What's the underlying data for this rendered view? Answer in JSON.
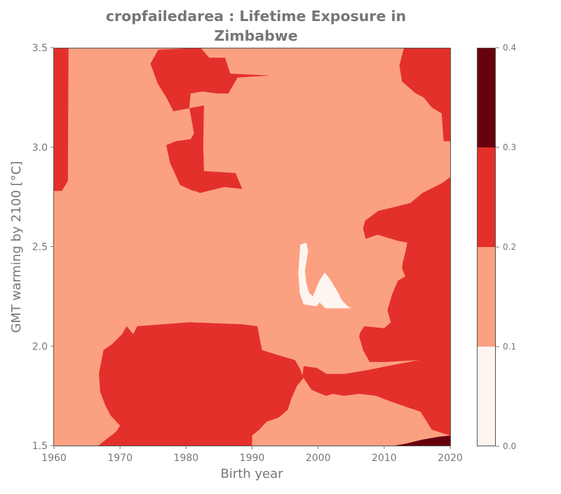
{
  "chart_data": {
    "type": "heatmap",
    "title_lines": [
      "cropfailedarea : Lifetime Exposure in",
      "Zimbabwe"
    ],
    "xlabel": "Birth year",
    "ylabel": "GMT warming by 2100 [°C]",
    "xlim": [
      1960,
      2020
    ],
    "ylim": [
      1.5,
      3.5
    ],
    "xticks": [
      "1960",
      "1970",
      "1980",
      "1990",
      "2000",
      "2010",
      "2020"
    ],
    "yticks": [
      "1.5",
      "2.0",
      "2.5",
      "3.0",
      "3.5"
    ],
    "colorbar": {
      "ticks": [
        "0.0",
        "0.1",
        "0.2",
        "0.3",
        "0.4"
      ],
      "levels": [
        0.0,
        0.1,
        0.2,
        0.3,
        0.4
      ],
      "colors": [
        "#fff5f0",
        "#fca082",
        "#e3302a",
        "#67000d"
      ]
    },
    "background_level_band": [
      0.1,
      0.2
    ],
    "regions": [
      {
        "band": [
          0.2,
          0.3
        ],
        "points": [
          [
            1960,
            3.5
          ],
          [
            1962.2,
            3.5
          ],
          [
            1962.1,
            2.83
          ],
          [
            1961.2,
            2.78
          ],
          [
            1960,
            2.78
          ]
        ]
      },
      {
        "band": [
          0.2,
          0.3
        ],
        "points": [
          [
            1975.8,
            3.49
          ],
          [
            1982.2,
            3.5
          ],
          [
            1983.5,
            3.45
          ],
          [
            1985.9,
            3.45
          ],
          [
            1986.7,
            3.37
          ],
          [
            1992.7,
            3.36
          ],
          [
            1987.8,
            3.35
          ],
          [
            1986.4,
            3.27
          ],
          [
            1984.7,
            3.27
          ],
          [
            1982.5,
            3.28
          ],
          [
            1980.7,
            3.27
          ],
          [
            1980.5,
            3.2
          ],
          [
            1978.1,
            3.18
          ],
          [
            1977.0,
            3.25
          ],
          [
            1975.7,
            3.32
          ],
          [
            1974.6,
            3.42
          ]
        ]
      },
      {
        "band": [
          0.2,
          0.3
        ],
        "points": [
          [
            1978.1,
            3.18
          ],
          [
            1980.5,
            3.2
          ],
          [
            1981.2,
            3.07
          ],
          [
            1980.7,
            3.04
          ],
          [
            1978.5,
            3.03
          ],
          [
            1977.0,
            3.01
          ],
          [
            1977.6,
            2.92
          ],
          [
            1979.1,
            2.81
          ],
          [
            1981.1,
            2.78
          ],
          [
            1985.8,
            2.8
          ],
          [
            1982.7,
            2.88
          ],
          [
            1982.6,
            3.0
          ],
          [
            1982.7,
            3.21
          ]
        ]
      },
      {
        "band": [
          0.2,
          0.3
        ],
        "points": [
          [
            1978.5,
            3.03
          ],
          [
            1981.1,
            3.04
          ],
          [
            1982.6,
            3.0
          ],
          [
            1982.7,
            2.88
          ],
          [
            1987.5,
            2.87
          ],
          [
            1988.5,
            2.79
          ],
          [
            1985.8,
            2.8
          ],
          [
            1982.1,
            2.77
          ],
          [
            1979.1,
            2.81
          ],
          [
            1977.6,
            2.92
          ],
          [
            1977.0,
            3.01
          ]
        ]
      },
      {
        "band": [
          0.2,
          0.3
        ],
        "points": [
          [
            2013.0,
            3.5
          ],
          [
            2020,
            3.5
          ],
          [
            2020,
            3.03
          ],
          [
            2019.0,
            3.03
          ],
          [
            2018.7,
            3.17
          ],
          [
            2017.2,
            3.2
          ],
          [
            2016.0,
            3.25
          ],
          [
            2014.8,
            3.27
          ],
          [
            2012.7,
            3.33
          ],
          [
            2012.3,
            3.41
          ]
        ]
      },
      {
        "band": [
          0.2,
          0.3
        ],
        "points": [
          [
            2020,
            2.85
          ],
          [
            2018.8,
            2.82
          ],
          [
            2015.8,
            2.77
          ],
          [
            2014.0,
            2.72
          ],
          [
            2011.7,
            2.7
          ],
          [
            2009.1,
            2.68
          ],
          [
            2007.1,
            2.63
          ],
          [
            2006.8,
            2.59
          ],
          [
            2007.2,
            2.54
          ],
          [
            2009.0,
            2.56
          ],
          [
            2012.0,
            2.53
          ],
          [
            2013.5,
            2.52
          ],
          [
            2013.2,
            2.47
          ],
          [
            2012.8,
            2.42
          ],
          [
            2012.7,
            2.39
          ],
          [
            2013.2,
            2.35
          ],
          [
            2012.1,
            2.33
          ],
          [
            2011.2,
            2.26
          ],
          [
            2010.5,
            2.18
          ],
          [
            2011.0,
            2.12
          ],
          [
            2010.0,
            2.09
          ],
          [
            2007.0,
            2.1
          ],
          [
            2006.4,
            2.07
          ],
          [
            2006.2,
            2.05
          ],
          [
            2006.8,
            1.98
          ],
          [
            2007.8,
            1.92
          ],
          [
            2010.2,
            1.92
          ],
          [
            2015.3,
            1.93
          ],
          [
            2010.5,
            1.9
          ],
          [
            2007.6,
            1.88
          ],
          [
            2004.0,
            1.86
          ],
          [
            2001.3,
            1.86
          ],
          [
            1999.8,
            1.89
          ],
          [
            1997.8,
            1.9
          ],
          [
            1997.6,
            1.84
          ],
          [
            1999.0,
            1.78
          ],
          [
            2001.2,
            1.75
          ],
          [
            2002.2,
            1.76
          ],
          [
            2003.9,
            1.75
          ],
          [
            2006.2,
            1.76
          ],
          [
            2008.8,
            1.75
          ],
          [
            2011.1,
            1.72
          ],
          [
            2015.5,
            1.67
          ],
          [
            2017.2,
            1.58
          ],
          [
            2020,
            1.55
          ],
          [
            2020,
            1.5
          ],
          [
            2020,
            2.85
          ]
        ]
      },
      {
        "band": [
          0.2,
          0.3
        ],
        "points": [
          [
            1966.7,
            1.5
          ],
          [
            1969.4,
            1.57
          ],
          [
            1970.0,
            1.6
          ],
          [
            1968.6,
            1.65
          ],
          [
            1967.8,
            1.7
          ],
          [
            1967.0,
            1.77
          ],
          [
            1966.8,
            1.86
          ],
          [
            1967.5,
            1.98
          ],
          [
            1968.8,
            2.01
          ],
          [
            1970.3,
            2.06
          ],
          [
            1971.0,
            2.1
          ],
          [
            1971.5,
            2.08
          ],
          [
            1972.0,
            2.06
          ],
          [
            1972.6,
            2.1
          ],
          [
            1980.5,
            2.12
          ],
          [
            1988.5,
            2.11
          ],
          [
            1990.8,
            2.1
          ],
          [
            1991.5,
            1.98
          ],
          [
            1994.4,
            1.95
          ],
          [
            1996.5,
            1.93
          ],
          [
            1997.2,
            1.89
          ],
          [
            1997.8,
            1.84
          ],
          [
            1996.8,
            1.8
          ],
          [
            1996.0,
            1.74
          ],
          [
            1995.4,
            1.68
          ],
          [
            1994.0,
            1.64
          ],
          [
            1992.2,
            1.62
          ],
          [
            1991.1,
            1.58
          ],
          [
            1990.0,
            1.55
          ],
          [
            1990.0,
            1.5
          ]
        ]
      },
      {
        "band": [
          0.3,
          0.4
        ],
        "points": [
          [
            2011.6,
            1.5
          ],
          [
            2013.3,
            1.51
          ],
          [
            2015.8,
            1.53
          ],
          [
            2018.4,
            1.545
          ],
          [
            2020,
            1.55
          ],
          [
            2020,
            1.5
          ]
        ]
      },
      {
        "band": [
          0.0,
          0.1
        ],
        "points": [
          [
            1997.3,
            2.51
          ],
          [
            1998.2,
            2.52
          ],
          [
            1998.5,
            2.48
          ],
          [
            1998.2,
            2.42
          ],
          [
            1998.0,
            2.38
          ],
          [
            1998.2,
            2.32
          ],
          [
            1998.6,
            2.27
          ],
          [
            1999.2,
            2.25
          ],
          [
            2000.2,
            2.33
          ],
          [
            2001.0,
            2.37
          ],
          [
            2001.5,
            2.35
          ],
          [
            2002.1,
            2.32
          ],
          [
            2003.0,
            2.27
          ],
          [
            2003.6,
            2.23
          ],
          [
            2004.5,
            2.2
          ],
          [
            2005.0,
            2.19
          ],
          [
            2001.1,
            2.19
          ],
          [
            2000.2,
            2.22
          ],
          [
            1999.8,
            2.2
          ],
          [
            1997.8,
            2.21
          ],
          [
            1997.2,
            2.27
          ],
          [
            1997.0,
            2.37
          ]
        ]
      },
      {
        "band": [
          0.1,
          0.2
        ],
        "points": [
          [
            1990.0,
            1.5
          ],
          [
            1990.0,
            1.55
          ],
          [
            1991.1,
            1.58
          ],
          [
            1992.2,
            1.62
          ],
          [
            1994.0,
            1.64
          ],
          [
            1995.4,
            1.68
          ],
          [
            1996.0,
            1.74
          ],
          [
            1996.8,
            1.8
          ],
          [
            1997.8,
            1.84
          ],
          [
            1999.0,
            1.78
          ],
          [
            2000.1,
            1.75
          ],
          [
            2001.2,
            1.74
          ],
          [
            2003.3,
            1.74
          ],
          [
            2005.2,
            1.73
          ],
          [
            2005.1,
            1.62
          ],
          [
            2004.9,
            1.58
          ],
          [
            2002.3,
            1.57
          ],
          [
            2000.2,
            1.59
          ],
          [
            1998.9,
            1.58
          ],
          [
            1997.3,
            1.56
          ],
          [
            1995.0,
            1.55
          ],
          [
            1993.1,
            1.53
          ],
          [
            1990.5,
            1.5
          ]
        ]
      }
    ]
  }
}
